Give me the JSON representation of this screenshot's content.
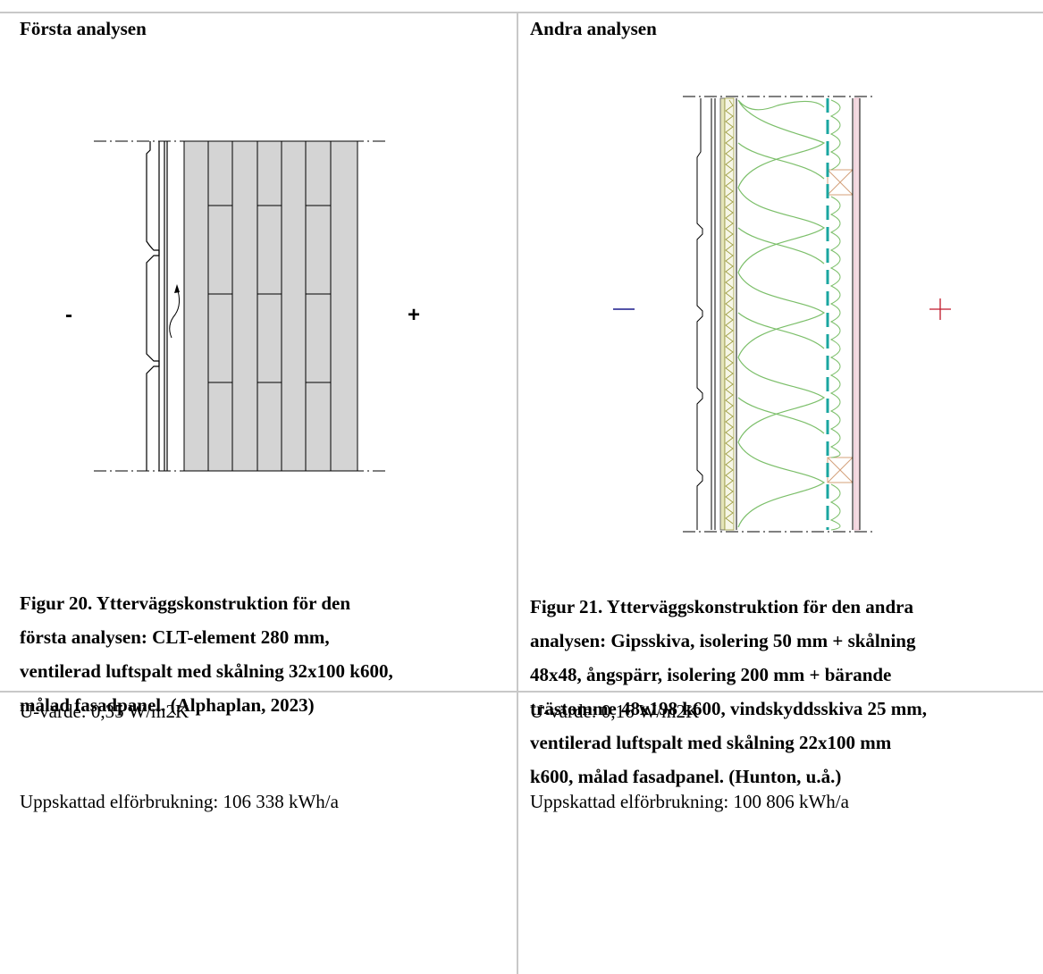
{
  "columns": [
    {
      "heading": "Första analysen",
      "caption_lines": [
        "Figur 20. Ytterväggskonstruktion för den",
        "första analysen: CLT-element 280 mm,",
        "ventilerad luftspalt med skålning 32x100 k600,",
        "målad fasadpanel. (Alphaplan, 2023)"
      ],
      "minus_sign": "-",
      "plus_sign": "+",
      "u_value": "U-värde: 0,35 W/m2K",
      "consumption": "Uppskattad elförbrukning: 106 338 kWh/a"
    },
    {
      "heading": "Andra analysen",
      "caption_lines": [
        "Figur 21. Ytterväggskonstruktion för den andra",
        "analysen: Gipsskiva, isolering 50 mm + skålning",
        "48x48, ångspärr, isolering 200 mm + bärande",
        "trästomme 48x198 k600, vindskyddsskiva 25 mm,",
        "ventilerad luftspalt med skålning 22x100 mm",
        "k600, målad fasadpanel.  (Hunton, u.å.)"
      ],
      "u_value": "U-värde: 0,16 W/m2K",
      "consumption": "Uppskattad elförbrukning: 100 806 kWh/a"
    }
  ],
  "colors": {
    "clt_fill": "#d4d4d4",
    "insulation": "#7cbf6a",
    "vapor_barrier": "#1aa6a0",
    "stud": "#d4a07a",
    "pink_layer": "#e7b0c0",
    "wind_board": "#9a9a3a",
    "minus_sign": "#1a1a8c",
    "plus_sign": "#c0182a"
  }
}
